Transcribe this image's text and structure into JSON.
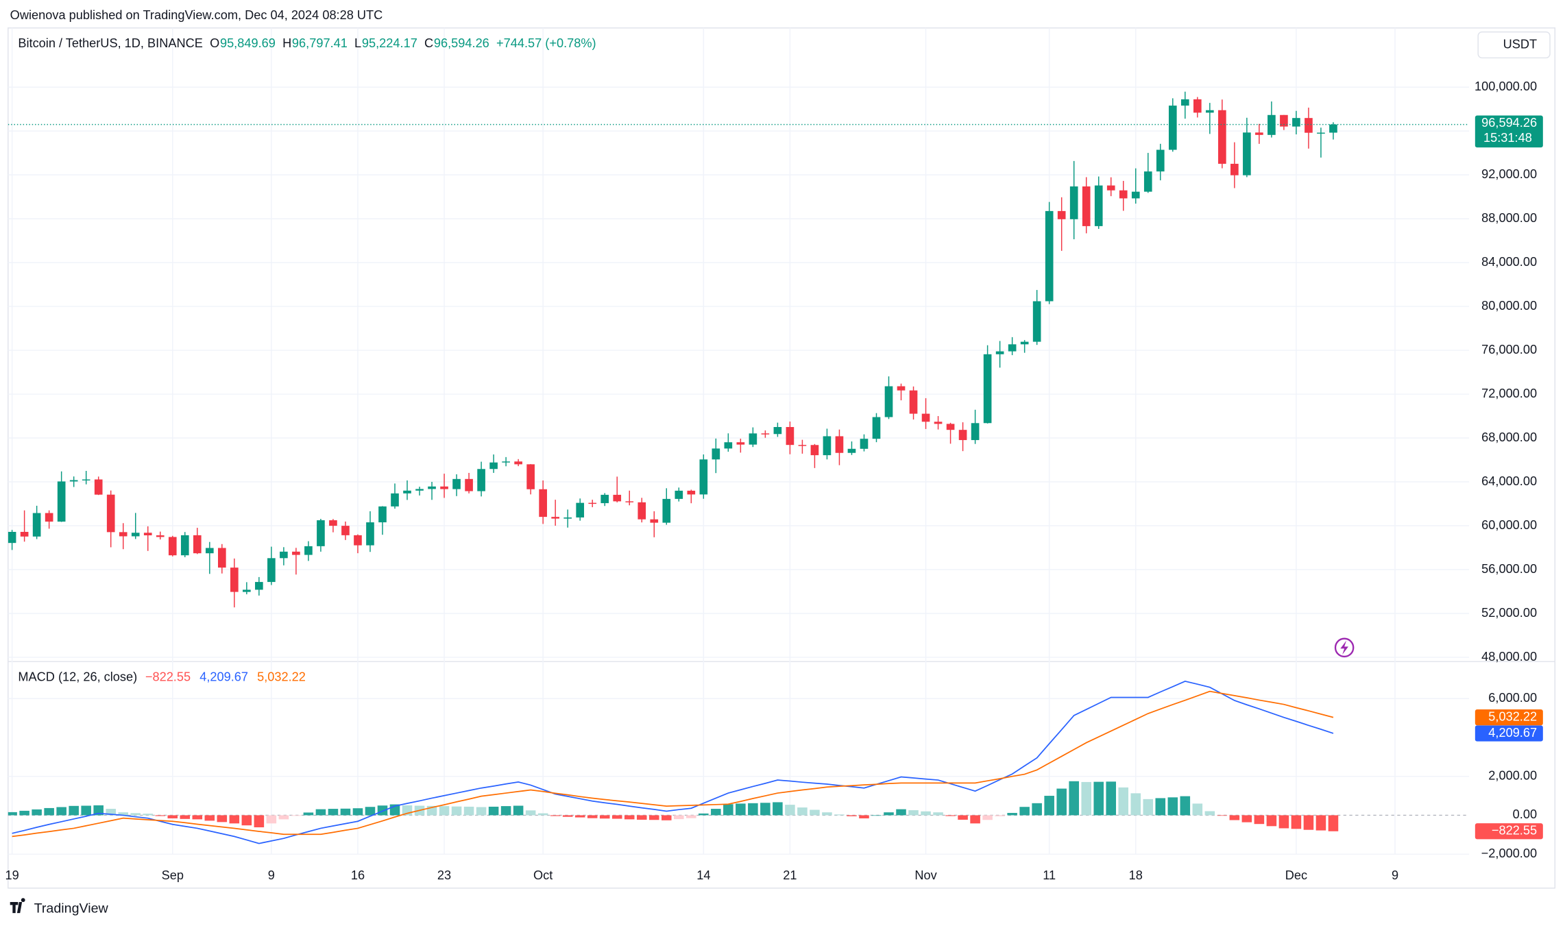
{
  "header": {
    "published": "Owienova published on TradingView.com, Dec 04, 2024 08:28 UTC",
    "currency": "USDT",
    "footer": "TradingView"
  },
  "chart_data": [
    {
      "type": "candlestick",
      "symbol": "Bitcoin / TetherUS, 1D, BINANCE",
      "ohlc_legend": [
        {
          "label": "O",
          "value": "95,849.69"
        },
        {
          "label": "H",
          "value": "96,797.41"
        },
        {
          "label": "L",
          "value": "95,224.17"
        },
        {
          "label": "C",
          "value": "96,594.26"
        }
      ],
      "change": "+744.57 (+0.78%)",
      "last_price_label": "96,594.26",
      "countdown": "15:31:48",
      "up_color": "#089981",
      "down_color": "#f23645",
      "grid": true,
      "x": [
        "2024-08-19",
        "2024-08-20",
        "2024-08-21",
        "2024-08-22",
        "2024-08-23",
        "2024-08-24",
        "2024-08-25",
        "2024-08-26",
        "2024-08-27",
        "2024-08-28",
        "2024-08-29",
        "2024-08-30",
        "2024-08-31",
        "2024-09-01",
        "2024-09-02",
        "2024-09-03",
        "2024-09-04",
        "2024-09-05",
        "2024-09-06",
        "2024-09-07",
        "2024-09-08",
        "2024-09-09",
        "2024-09-10",
        "2024-09-11",
        "2024-09-12",
        "2024-09-13",
        "2024-09-14",
        "2024-09-15",
        "2024-09-16",
        "2024-09-17",
        "2024-09-18",
        "2024-09-19",
        "2024-09-20",
        "2024-09-21",
        "2024-09-22",
        "2024-09-23",
        "2024-09-24",
        "2024-09-25",
        "2024-09-26",
        "2024-09-27",
        "2024-09-28",
        "2024-09-29",
        "2024-09-30",
        "2024-10-01",
        "2024-10-02",
        "2024-10-03",
        "2024-10-04",
        "2024-10-05",
        "2024-10-06",
        "2024-10-07",
        "2024-10-08",
        "2024-10-09",
        "2024-10-10",
        "2024-10-11",
        "2024-10-12",
        "2024-10-13",
        "2024-10-14",
        "2024-10-15",
        "2024-10-16",
        "2024-10-17",
        "2024-10-18",
        "2024-10-19",
        "2024-10-20",
        "2024-10-21",
        "2024-10-22",
        "2024-10-23",
        "2024-10-24",
        "2024-10-25",
        "2024-10-26",
        "2024-10-27",
        "2024-10-28",
        "2024-10-29",
        "2024-10-30",
        "2024-10-31",
        "2024-11-01",
        "2024-11-02",
        "2024-11-03",
        "2024-11-04",
        "2024-11-05",
        "2024-11-06",
        "2024-11-07",
        "2024-11-08",
        "2024-11-09",
        "2024-11-10",
        "2024-11-11",
        "2024-11-12",
        "2024-11-13",
        "2024-11-14",
        "2024-11-15",
        "2024-11-16",
        "2024-11-17",
        "2024-11-18",
        "2024-11-19",
        "2024-11-20",
        "2024-11-21",
        "2024-11-22",
        "2024-11-23",
        "2024-11-24",
        "2024-11-25",
        "2024-11-26",
        "2024-11-27",
        "2024-11-28",
        "2024-11-29",
        "2024-11-30",
        "2024-12-01",
        "2024-12-02",
        "2024-12-03",
        "2024-12-04"
      ],
      "open": [
        58427,
        59438,
        59013,
        61156,
        60375,
        64037,
        64157,
        64220,
        62834,
        59415,
        59034,
        59359,
        59123,
        58973,
        57301,
        59132,
        57487,
        57970,
        56180,
        53962,
        54160,
        54869,
        57042,
        57635,
        57338,
        58132,
        60498,
        59993,
        59132,
        58213,
        60309,
        61759,
        62947,
        63201,
        63348,
        63578,
        63339,
        64262,
        63152,
        65173,
        65769,
        65858,
        65602,
        63327,
        60805,
        60649,
        60752,
        62086,
        62058,
        62819,
        62224,
        62134,
        60582,
        60274,
        62445,
        63193,
        62851,
        66046,
        67041,
        67612,
        67399,
        68418,
        68362,
        69001,
        67367,
        67361,
        66432,
        68161,
        66642,
        67014,
        67929,
        69907,
        72720,
        72339,
        70215,
        69482,
        69289,
        68741,
        67811,
        69359,
        75639,
        75904,
        76545,
        76778,
        80474,
        88701,
        87955,
        90945,
        87325,
        91032,
        90587,
        89855,
        90465,
        92310,
        94286,
        98317,
        98892,
        97672,
        97900,
        93010,
        91965,
        95863,
        95643,
        97460,
        96407,
        97185,
        95840,
        95849.69
      ],
      "high": [
        59617,
        61400,
        61820,
        61400,
        64955,
        64494,
        65000,
        64481,
        63212,
        60234,
        61166,
        59944,
        59463,
        59076,
        59425,
        59809,
        58519,
        58327,
        57008,
        54850,
        55318,
        58088,
        58044,
        57981,
        58588,
        60625,
        60610,
        60380,
        59210,
        61320,
        61786,
        63850,
        64133,
        63559,
        64000,
        64745,
        64688,
        64817,
        65839,
        66498,
        66260,
        66076,
        65618,
        64130,
        62370,
        61477,
        62484,
        62370,
        62975,
        64478,
        63200,
        62543,
        61320,
        63417,
        63480,
        63285,
        66500,
        67950,
        68424,
        67939,
        68969,
        68694,
        69400,
        69500,
        67836,
        67451,
        68850,
        68771,
        67685,
        68333,
        70270,
        73620,
        72961,
        72700,
        71632,
        70000,
        69387,
        69433,
        70577,
        76460,
        76849,
        77199,
        76932,
        81500,
        89530,
        89956,
        93265,
        91790,
        91850,
        91779,
        91449,
        92594,
        94002,
        94831,
        98984,
        99588,
        99100,
        98564,
        98871,
        94973,
        97208,
        96650,
        98693,
        97463,
        97836,
        98130,
        96305,
        96797.41
      ],
      "low": [
        57787,
        58548,
        58783,
        59724,
        60342,
        63531,
        63773,
        62800,
        58034,
        57860,
        58786,
        57700,
        58744,
        57201,
        57128,
        57415,
        55606,
        55643,
        52550,
        53745,
        53629,
        54591,
        56386,
        55545,
        56788,
        57632,
        59400,
        58696,
        57493,
        57610,
        59174,
        61555,
        62350,
        62758,
        62357,
        62538,
        62700,
        62947,
        62670,
        64819,
        65422,
        65432,
        62856,
        60164,
        60000,
        59828,
        60459,
        61689,
        61798,
        62128,
        61860,
        60301,
        58946,
        60087,
        62209,
        62050,
        62457,
        64800,
        66750,
        66666,
        67177,
        68020,
        68101,
        66518,
        66571,
        65260,
        66048,
        65521,
        66450,
        66777,
        67618,
        69730,
        71436,
        69685,
        68820,
        68777,
        67478,
        66803,
        67458,
        69322,
        74417,
        75558,
        75773,
        76492,
        80216,
        85072,
        86127,
        86668,
        87073,
        90057,
        88722,
        89376,
        90357,
        91500,
        94113,
        97122,
        97232,
        95734,
        92600,
        90791,
        91792,
        94827,
        95407,
        96092,
        95693,
        94395,
        93578,
        95224.17
      ],
      "close": [
        59438,
        59013,
        61156,
        60375,
        64037,
        64157,
        64220,
        62834,
        59415,
        59034,
        59359,
        59123,
        58973,
        57301,
        59132,
        57487,
        57970,
        56180,
        53962,
        54160,
        54869,
        57042,
        57635,
        57338,
        58132,
        60498,
        59993,
        59132,
        58213,
        60309,
        61759,
        62947,
        63201,
        63348,
        63578,
        63339,
        64262,
        63152,
        65173,
        65769,
        65858,
        65602,
        63327,
        60805,
        60649,
        60752,
        62086,
        62058,
        62819,
        62224,
        62134,
        60582,
        60274,
        62445,
        63193,
        62851,
        66046,
        67041,
        67612,
        67399,
        68418,
        68362,
        69001,
        67367,
        67361,
        66432,
        68161,
        66642,
        67014,
        67929,
        69907,
        72720,
        72339,
        70215,
        69482,
        69289,
        68741,
        67811,
        69359,
        75639,
        75904,
        76545,
        76778,
        80474,
        88701,
        87955,
        90945,
        87325,
        91032,
        90587,
        89855,
        90465,
        92310,
        94286,
        98317,
        98892,
        97672,
        97900,
        93010,
        91965,
        95863,
        95643,
        97460,
        96407,
        97185,
        95840,
        95849.69,
        96594.26
      ],
      "xlim": [
        "2024-08-19",
        "2024-12-15"
      ],
      "xticks": [
        {
          "value": "2024-08-19",
          "label": "19"
        },
        {
          "value": "2024-09-01",
          "label": "Sep"
        },
        {
          "value": "2024-09-09",
          "label": "9"
        },
        {
          "value": "2024-09-16",
          "label": "16"
        },
        {
          "value": "2024-09-23",
          "label": "23"
        },
        {
          "value": "2024-10-01",
          "label": "Oct"
        },
        {
          "value": "2024-10-14",
          "label": "14"
        },
        {
          "value": "2024-10-21",
          "label": "21"
        },
        {
          "value": "2024-11-01",
          "label": "Nov"
        },
        {
          "value": "2024-11-11",
          "label": "11"
        },
        {
          "value": "2024-11-18",
          "label": "18"
        },
        {
          "value": "2024-12-01",
          "label": "Dec"
        },
        {
          "value": "2024-12-09",
          "label": "9"
        }
      ],
      "ylim": [
        47700,
        105400
      ],
      "yticks": [
        {
          "value": 48000,
          "label": "48,000.00"
        },
        {
          "value": 52000,
          "label": "52,000.00"
        },
        {
          "value": 56000,
          "label": "56,000.00"
        },
        {
          "value": 60000,
          "label": "60,000.00"
        },
        {
          "value": 64000,
          "label": "64,000.00"
        },
        {
          "value": 68000,
          "label": "68,000.00"
        },
        {
          "value": 72000,
          "label": "72,000.00"
        },
        {
          "value": 76000,
          "label": "76,000.00"
        },
        {
          "value": 80000,
          "label": "80,000.00"
        },
        {
          "value": 84000,
          "label": "84,000.00"
        },
        {
          "value": 88000,
          "label": "88,000.00"
        },
        {
          "value": 92000,
          "label": "92,000.00"
        },
        {
          "value": 96000,
          "label": "96,000.00"
        },
        {
          "value": 100000,
          "label": "100,000.00"
        }
      ]
    },
    {
      "type": "macd",
      "title": "MACD (12, 26, close)",
      "legend_values": [
        "−822.55",
        "4,209.67",
        "5,032.22"
      ],
      "histogram": {
        "values": [
          160,
          230,
          300,
          370,
          420,
          480,
          490,
          510,
          330,
          150,
          110,
          80,
          -40,
          -160,
          -190,
          -210,
          -280,
          -350,
          -420,
          -520,
          -620,
          -420,
          -210,
          -30,
          140,
          310,
          330,
          340,
          360,
          430,
          500,
          560,
          510,
          490,
          480,
          470,
          450,
          440,
          420,
          440,
          470,
          490,
          250,
          100,
          -40,
          -80,
          -110,
          -150,
          -170,
          -180,
          -210,
          -230,
          -240,
          -260,
          -200,
          -150,
          90,
          330,
          570,
          600,
          620,
          640,
          670,
          540,
          400,
          280,
          150,
          40,
          -50,
          -160,
          0,
          150,
          310,
          260,
          200,
          150,
          -40,
          -230,
          -420,
          -240,
          -50,
          120,
          430,
          620,
          1000,
          1370,
          1750,
          1710,
          1720,
          1730,
          1430,
          1130,
          830,
          880,
          920,
          980,
          600,
          210,
          -20,
          -250,
          -360,
          -450,
          -560,
          -670,
          -700,
          -750,
          -780,
          -822.55
        ],
        "colors": {
          "positive_rising": "#26a69a",
          "positive_falling": "#b2dfdb",
          "negative_falling": "#ff5252",
          "negative_rising": "#ffcdd2"
        }
      },
      "series": [
        {
          "color": "#2962ff",
          "values": [
            -930,
            -780,
            -620,
            -470,
            -330,
            -190,
            -50,
            100,
            50,
            0,
            -80,
            -150,
            -310,
            -470,
            -570,
            -670,
            -810,
            -950,
            -1090,
            -1270,
            -1450,
            -1320,
            -1190,
            -1010,
            -840,
            -670,
            -550,
            -430,
            -310,
            -50,
            210,
            470,
            610,
            740,
            880,
            1010,
            1140,
            1270,
            1400,
            1500,
            1610,
            1710,
            1550,
            1320,
            1090,
            970,
            850,
            730,
            640,
            560,
            470,
            380,
            300,
            210,
            290,
            360,
            620,
            880,
            1140,
            1310,
            1480,
            1640,
            1810,
            1760,
            1700,
            1650,
            1600,
            1530,
            1470,
            1400,
            1590,
            1780,
            1970,
            1920,
            1860,
            1810,
            1620,
            1430,
            1240,
            1530,
            1830,
            2120,
            2540,
            2950,
            3680,
            4400,
            5130,
            5440,
            5750,
            6060,
            6060,
            6060,
            6060,
            6340,
            6610,
            6890,
            6740,
            6580,
            6240,
            5900,
            5680,
            5470,
            5250,
            5030,
            4830,
            4620,
            4420,
            4209.67
          ]
        },
        {
          "color": "#ff6d00",
          "values": [
            -1090,
            -1010,
            -920,
            -840,
            -750,
            -670,
            -540,
            -410,
            -280,
            -150,
            -190,
            -230,
            -270,
            -310,
            -380,
            -460,
            -530,
            -600,
            -670,
            -750,
            -830,
            -900,
            -980,
            -980,
            -980,
            -980,
            -880,
            -770,
            -670,
            -480,
            -290,
            -90,
            100,
            250,
            400,
            540,
            690,
            830,
            980,
            1060,
            1140,
            1220,
            1300,
            1220,
            1130,
            1050,
            960,
            880,
            810,
            740,
            680,
            610,
            540,
            470,
            490,
            510,
            530,
            550,
            570,
            710,
            860,
            1000,
            1140,
            1220,
            1300,
            1370,
            1450,
            1490,
            1520,
            1560,
            1590,
            1630,
            1660,
            1660,
            1660,
            1660,
            1660,
            1660,
            1660,
            1770,
            1880,
            2000,
            2110,
            2330,
            2680,
            3030,
            3380,
            3730,
            4030,
            4330,
            4630,
            4930,
            5230,
            5460,
            5690,
            5910,
            6140,
            6370,
            6260,
            6150,
            6040,
            5920,
            5810,
            5700,
            5530,
            5370,
            5200,
            5032.22
          ]
        }
      ],
      "ylim": [
        -2000,
        7850
      ],
      "yticks": [
        {
          "value": 6000,
          "label": "6,000.00"
        },
        {
          "value": 2000,
          "label": "2,000.00"
        },
        {
          "value": 0,
          "label": "0.00"
        },
        {
          "value": -2000,
          "label": "−2,000.00"
        }
      ]
    }
  ]
}
